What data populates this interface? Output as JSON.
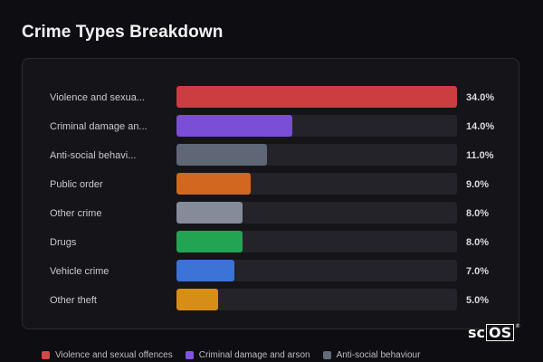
{
  "chart_data": {
    "type": "bar",
    "orientation": "horizontal",
    "title": "Crime Types Breakdown",
    "xlim": [
      0,
      34
    ],
    "categories_display": [
      "Violence and sexua...",
      "Criminal damage an...",
      "Anti-social behavi...",
      "Public order",
      "Other crime",
      "Drugs",
      "Vehicle crime",
      "Other theft"
    ],
    "value_labels": [
      "34.0%",
      "14.0%",
      "11.0%",
      "9.0%",
      "8.0%",
      "8.0%",
      "7.0%",
      "5.0%"
    ],
    "values": [
      34.0,
      14.0,
      11.0,
      9.0,
      8.0,
      8.0,
      7.0,
      5.0
    ],
    "colors": [
      "#cc3d42",
      "#7a4ed6",
      "#5f6777",
      "#d2671f",
      "#858c99",
      "#22a553",
      "#3b73d6",
      "#d68e17"
    ],
    "legend": {
      "placement": "bottom",
      "entries": [
        {
          "label": "Violence and sexual offences",
          "color": "#d94448"
        },
        {
          "label": "Criminal damage and arson",
          "color": "#8252e0"
        },
        {
          "label": "Anti-social behaviour",
          "color": "#636b7b"
        }
      ]
    }
  },
  "watermark": {
    "text_left": "sc",
    "text_box": "OS",
    "mark": "®"
  }
}
